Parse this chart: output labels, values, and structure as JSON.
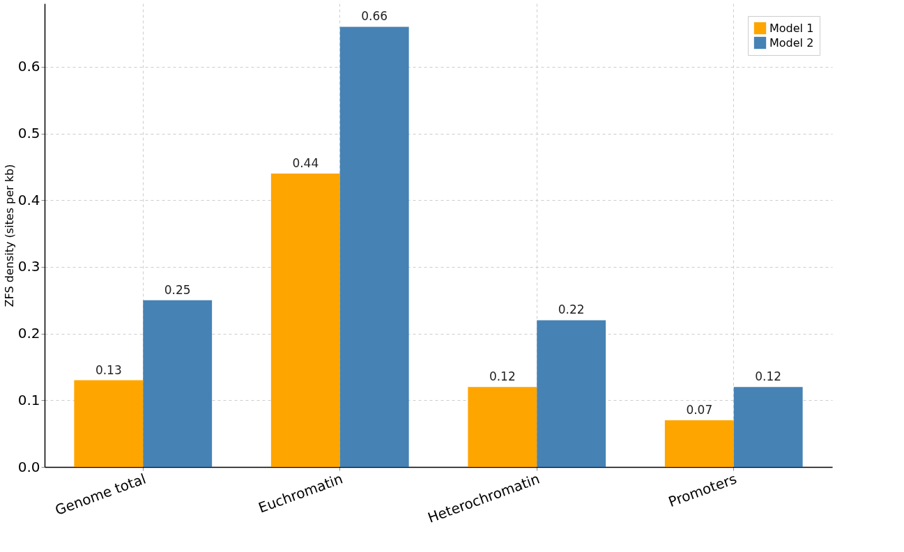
{
  "chart_data": {
    "type": "bar",
    "ylabel": "ZFS density (sites per kb)",
    "categories": [
      "Genome total",
      "Euchromatin",
      "Heterochromatin",
      "Promoters"
    ],
    "series": [
      {
        "name": "Model 1",
        "color": "#ffa500",
        "values": [
          0.13,
          0.44,
          0.12,
          0.07
        ]
      },
      {
        "name": "Model 2",
        "color": "#4682b4",
        "values": [
          0.25,
          0.66,
          0.22,
          0.12
        ]
      }
    ],
    "ylim": [
      0,
      0.695
    ],
    "yticks": [
      {
        "value": 0,
        "label": "0.0"
      },
      0.1,
      0.2,
      0.3,
      0.4,
      0.5,
      0.6
    ],
    "grid": true,
    "legend": "top right",
    "data_labels": true
  }
}
